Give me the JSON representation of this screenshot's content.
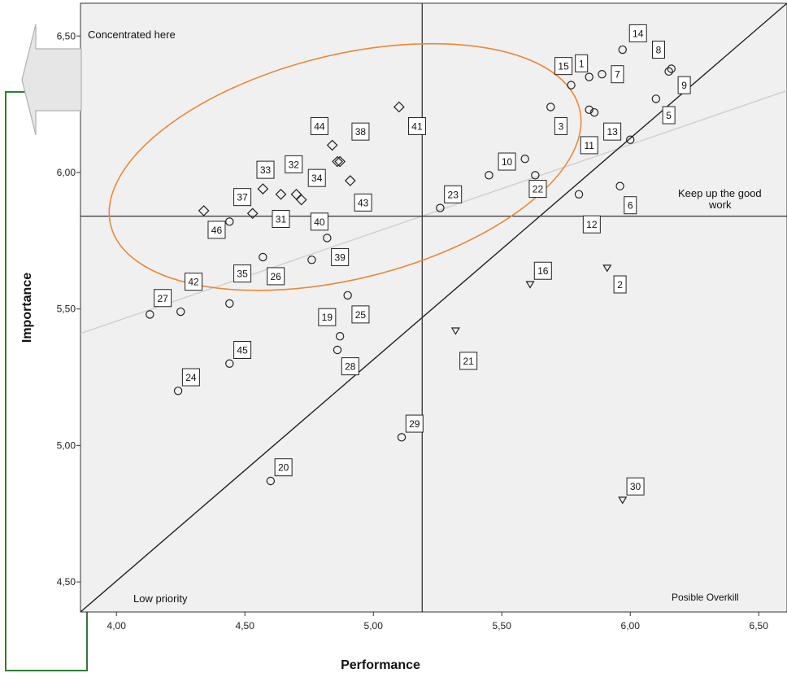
{
  "chart_data": {
    "type": "scatter",
    "xlabel": "Performance",
    "ylabel": "Importance",
    "xlim": [
      3.86,
      6.61
    ],
    "ylim": [
      4.39,
      6.62
    ],
    "xticks": [
      "4,00",
      "4,50",
      "5,00",
      "5,50",
      "6,00",
      "6,50"
    ],
    "yticks": [
      "4,50",
      "5,00",
      "5,50",
      "6,00",
      "6,50"
    ],
    "mean_lines": {
      "x": 5.19,
      "y": 5.84
    },
    "diagonal": [
      [
        3.86,
        4.39
      ],
      [
        6.61,
        6.62
      ]
    ],
    "fit_line": [
      [
        3.86,
        5.41
      ],
      [
        6.61,
        6.3
      ]
    ],
    "annotations": {
      "top_left": "Concentrated here",
      "right_mid": "Keep up the good work",
      "bottom_left": "Low priority",
      "bottom_right": "Posible Overkill"
    },
    "highlight_ellipse": {
      "cx": 4.89,
      "cy": 6.02,
      "rx": 0.94,
      "ry": 0.41,
      "rotation_deg": -14,
      "color": "#e8893a"
    },
    "colors": {
      "plot_bg": "#f0f0f0",
      "points": "#222222",
      "grid": "#333333",
      "fit": "#cfcfcf",
      "frame": "#2e7d32"
    },
    "points": [
      {
        "id": "1",
        "x": 5.84,
        "y": 6.35,
        "marker": "circle"
      },
      {
        "id": "2",
        "x": 5.91,
        "y": 5.65,
        "marker": "triangle"
      },
      {
        "id": "3",
        "x": 5.69,
        "y": 6.24,
        "marker": "circle"
      },
      {
        "id": "5",
        "x": 6.1,
        "y": 6.27,
        "marker": "circle"
      },
      {
        "id": "6",
        "x": 5.96,
        "y": 5.95,
        "marker": "circle"
      },
      {
        "id": "7",
        "x": 5.89,
        "y": 6.36,
        "marker": "circle"
      },
      {
        "id": "8",
        "x": 6.15,
        "y": 6.37,
        "marker": "circle"
      },
      {
        "id": "9",
        "x": 6.16,
        "y": 6.38,
        "marker": "circle"
      },
      {
        "id": "10",
        "x": 5.45,
        "y": 5.99,
        "marker": "circle"
      },
      {
        "id": "11",
        "x": 5.84,
        "y": 6.23,
        "marker": "circle"
      },
      {
        "id": "12",
        "x": 5.8,
        "y": 5.92,
        "marker": "circle"
      },
      {
        "id": "13",
        "x": 6.0,
        "y": 6.12,
        "marker": "circle"
      },
      {
        "id": "14",
        "x": 5.97,
        "y": 6.45,
        "marker": "circle"
      },
      {
        "id": "15",
        "x": 5.77,
        "y": 6.32,
        "marker": "circle"
      },
      {
        "id": "16",
        "x": 5.61,
        "y": 5.59,
        "marker": "triangle"
      },
      {
        "id": "19",
        "x": 4.87,
        "y": 5.4,
        "marker": "circle"
      },
      {
        "id": "20",
        "x": 4.6,
        "y": 4.87,
        "marker": "circle"
      },
      {
        "id": "21",
        "x": 5.32,
        "y": 5.42,
        "marker": "triangle"
      },
      {
        "id": "22",
        "x": 5.63,
        "y": 5.99,
        "marker": "circle"
      },
      {
        "id": "23",
        "x": 5.26,
        "y": 5.87,
        "marker": "circle"
      },
      {
        "id": "24",
        "x": 4.24,
        "y": 5.2,
        "marker": "circle"
      },
      {
        "id": "25",
        "x": 4.9,
        "y": 5.55,
        "marker": "circle"
      },
      {
        "id": "26",
        "x": 4.57,
        "y": 5.69,
        "marker": "circle"
      },
      {
        "id": "27",
        "x": 4.13,
        "y": 5.48,
        "marker": "circle"
      },
      {
        "id": "28",
        "x": 4.86,
        "y": 5.35,
        "marker": "circle"
      },
      {
        "id": "29",
        "x": 5.11,
        "y": 5.03,
        "marker": "circle"
      },
      {
        "id": "30",
        "x": 5.97,
        "y": 4.8,
        "marker": "triangle"
      },
      {
        "id": "31",
        "x": 4.53,
        "y": 5.85,
        "marker": "diamond"
      },
      {
        "id": "32",
        "x": 4.64,
        "y": 5.92,
        "marker": "diamond"
      },
      {
        "id": "33",
        "x": 4.57,
        "y": 5.94,
        "marker": "diamond"
      },
      {
        "id": "34",
        "x": 4.72,
        "y": 5.9,
        "marker": "diamond"
      },
      {
        "id": "35",
        "x": 4.44,
        "y": 5.52,
        "marker": "circle"
      },
      {
        "id": "37",
        "x": 4.34,
        "y": 5.86,
        "marker": "diamond"
      },
      {
        "id": "38",
        "x": 4.84,
        "y": 6.1,
        "marker": "diamond"
      },
      {
        "id": "39",
        "x": 4.82,
        "y": 5.76,
        "marker": "circle"
      },
      {
        "id": "40",
        "x": 4.76,
        "y": 5.68,
        "marker": "circle"
      },
      {
        "id": "41",
        "x": 5.1,
        "y": 6.24,
        "marker": "diamond"
      },
      {
        "id": "42",
        "x": 4.25,
        "y": 5.49,
        "marker": "circle"
      },
      {
        "id": "43",
        "x": 4.91,
        "y": 5.97,
        "marker": "diamond"
      },
      {
        "id": "44",
        "x": 4.86,
        "y": 6.04,
        "marker": "diamond"
      },
      {
        "id": "45",
        "x": 4.44,
        "y": 5.3,
        "marker": "circle"
      },
      {
        "id": "46",
        "x": 4.44,
        "y": 5.82,
        "marker": "circle"
      }
    ],
    "extra_points": [
      {
        "x": 4.7,
        "y": 5.92,
        "marker": "diamond"
      },
      {
        "x": 4.87,
        "y": 6.04,
        "marker": "diamond"
      },
      {
        "x": 5.59,
        "y": 6.05,
        "marker": "circle"
      },
      {
        "x": 5.86,
        "y": 6.22,
        "marker": "circle"
      }
    ],
    "label_boxes": [
      {
        "id": "1",
        "x": 5.81,
        "y": 6.4
      },
      {
        "id": "2",
        "x": 5.96,
        "y": 5.59
      },
      {
        "id": "3",
        "x": 5.73,
        "y": 6.17
      },
      {
        "id": "5",
        "x": 6.15,
        "y": 6.21
      },
      {
        "id": "6",
        "x": 6.0,
        "y": 5.88
      },
      {
        "id": "7",
        "x": 5.95,
        "y": 6.36
      },
      {
        "id": "8",
        "x": 6.11,
        "y": 6.45
      },
      {
        "id": "9",
        "x": 6.21,
        "y": 6.32
      },
      {
        "id": "10",
        "x": 5.52,
        "y": 6.04
      },
      {
        "id": "11",
        "x": 5.84,
        "y": 6.1
      },
      {
        "id": "12",
        "x": 5.85,
        "y": 5.81
      },
      {
        "id": "13",
        "x": 5.93,
        "y": 6.15
      },
      {
        "id": "14",
        "x": 6.03,
        "y": 6.51
      },
      {
        "id": "15",
        "x": 5.74,
        "y": 6.39
      },
      {
        "id": "16",
        "x": 5.66,
        "y": 5.64
      },
      {
        "id": "19",
        "x": 4.82,
        "y": 5.47
      },
      {
        "id": "20",
        "x": 4.65,
        "y": 4.92
      },
      {
        "id": "21",
        "x": 5.37,
        "y": 5.31
      },
      {
        "id": "22",
        "x": 5.64,
        "y": 5.94
      },
      {
        "id": "23",
        "x": 5.31,
        "y": 5.92
      },
      {
        "id": "24",
        "x": 4.29,
        "y": 5.25
      },
      {
        "id": "25",
        "x": 4.95,
        "y": 5.48
      },
      {
        "id": "26",
        "x": 4.62,
        "y": 5.62
      },
      {
        "id": "27",
        "x": 4.18,
        "y": 5.54
      },
      {
        "id": "28",
        "x": 4.91,
        "y": 5.29
      },
      {
        "id": "29",
        "x": 5.16,
        "y": 5.08
      },
      {
        "id": "30",
        "x": 6.02,
        "y": 4.85
      },
      {
        "id": "31",
        "x": 4.64,
        "y": 5.83
      },
      {
        "id": "32",
        "x": 4.69,
        "y": 6.03
      },
      {
        "id": "33",
        "x": 4.58,
        "y": 6.01
      },
      {
        "id": "34",
        "x": 4.78,
        "y": 5.98
      },
      {
        "id": "35",
        "x": 4.49,
        "y": 5.63
      },
      {
        "id": "37",
        "x": 4.49,
        "y": 5.91
      },
      {
        "id": "38",
        "x": 4.95,
        "y": 6.15
      },
      {
        "id": "39",
        "x": 4.87,
        "y": 5.69
      },
      {
        "id": "40",
        "x": 4.79,
        "y": 5.82
      },
      {
        "id": "41",
        "x": 5.17,
        "y": 6.17
      },
      {
        "id": "42",
        "x": 4.3,
        "y": 5.6
      },
      {
        "id": "43",
        "x": 4.96,
        "y": 5.89
      },
      {
        "id": "44",
        "x": 4.79,
        "y": 6.17
      },
      {
        "id": "45",
        "x": 4.49,
        "y": 5.35
      },
      {
        "id": "46",
        "x": 4.39,
        "y": 5.79
      }
    ]
  }
}
